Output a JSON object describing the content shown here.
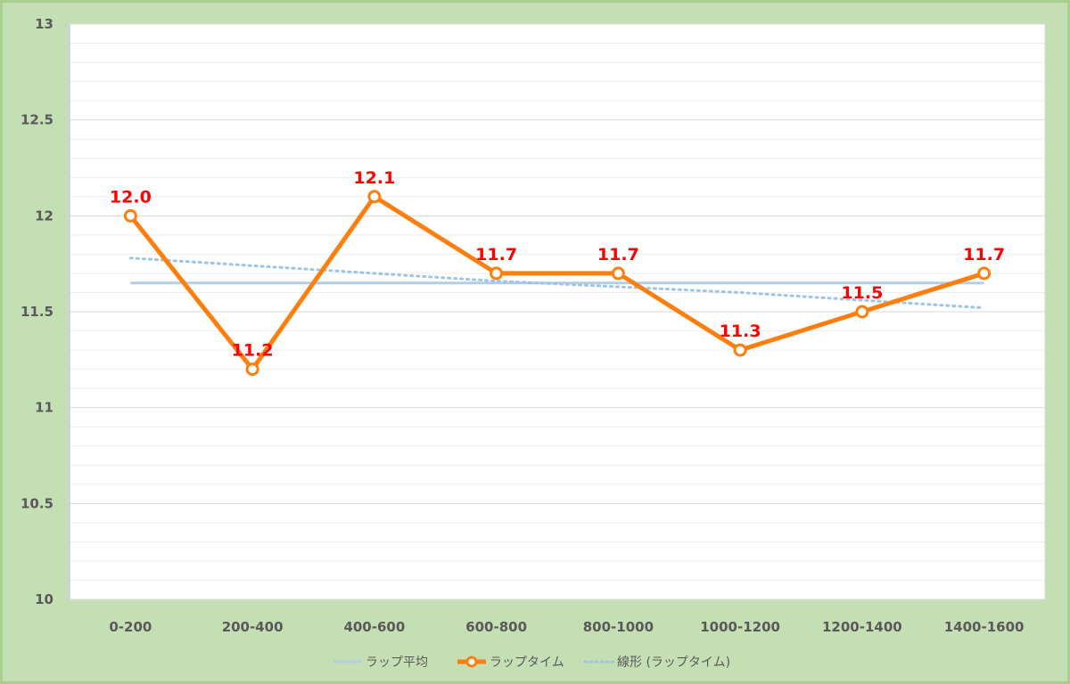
{
  "chart_data": {
    "type": "line",
    "categories": [
      "0-200",
      "200-400",
      "400-600",
      "600-800",
      "800-1000",
      "1000-1200",
      "1200-1400",
      "1400-1600"
    ],
    "series": [
      {
        "name": "ラップ平均",
        "values": [
          11.65,
          11.65,
          11.65,
          11.65,
          11.65,
          11.65,
          11.65,
          11.65
        ],
        "color": "#b4cde6",
        "style": "solid-thin"
      },
      {
        "name": "ラップタイム",
        "values": [
          12.0,
          11.2,
          12.1,
          11.7,
          11.7,
          11.3,
          11.5,
          11.7
        ],
        "data_labels": [
          "12.0",
          "11.2",
          "12.1",
          "11.7",
          "11.7",
          "11.3",
          "11.5",
          "11.7"
        ],
        "color": "#ff7f0e",
        "style": "line-markers"
      },
      {
        "name": "線形 (ラップタイム)",
        "values": [
          11.78,
          11.74,
          11.7,
          11.66,
          11.63,
          11.6,
          11.56,
          11.52
        ],
        "color": "#9dc3e6",
        "style": "dotted"
      }
    ],
    "ylim": [
      10,
      13
    ],
    "yticks": [
      "10",
      "10.5",
      "11",
      "11.5",
      "12",
      "12.5",
      "13"
    ],
    "grid": true,
    "legend_position": "bottom",
    "label_color": "#ff0000"
  }
}
